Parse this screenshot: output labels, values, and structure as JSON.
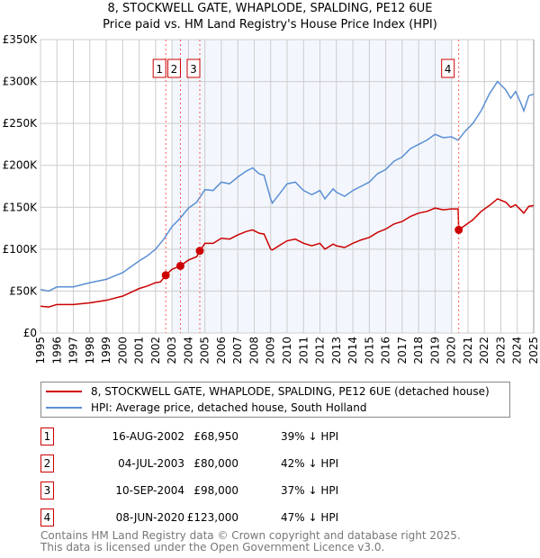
{
  "chart_data": {
    "type": "line",
    "title": "8, STOCKWELL GATE, WHAPLODE, SPALDING, PE12 6UE",
    "subtitle": "Price paid vs. HM Land Registry's House Price Index (HPI)",
    "xlim": [
      1995,
      2025
    ],
    "ylim": [
      0,
      350000
    ],
    "y_ticks": [
      {
        "v": 0,
        "label": "£0"
      },
      {
        "v": 50000,
        "label": "£50K"
      },
      {
        "v": 100000,
        "label": "£100K"
      },
      {
        "v": 150000,
        "label": "£150K"
      },
      {
        "v": 200000,
        "label": "£200K"
      },
      {
        "v": 250000,
        "label": "£250K"
      },
      {
        "v": 300000,
        "label": "£300K"
      },
      {
        "v": 350000,
        "label": "£350K"
      }
    ],
    "x_ticks": [
      "1995",
      "1996",
      "1997",
      "1998",
      "1999",
      "2000",
      "2001",
      "2002",
      "2003",
      "2004",
      "2005",
      "2006",
      "2007",
      "2008",
      "2009",
      "2010",
      "2011",
      "2012",
      "2013",
      "2014",
      "2015",
      "2016",
      "2017",
      "2018",
      "2019",
      "2020",
      "2021",
      "2022",
      "2023",
      "2024",
      "2025"
    ],
    "grid": true,
    "shaded_range": [
      2003.0,
      2020.07
    ],
    "series": [
      {
        "name": "8, STOCKWELL GATE, WHAPLODE, SPALDING, PE12 6UE (detached house)",
        "color": "#cc0000",
        "x": [
          1995,
          1995.5,
          1996,
          1997,
          1998,
          1999,
          2000,
          2001,
          2001.5,
          2002,
          2002.3,
          2002.62,
          2003,
          2003.51,
          2004,
          2004.5,
          2004.69,
          2005,
          2005.5,
          2006,
          2006.5,
          2007,
          2007.5,
          2007.9,
          2008.3,
          2008.6,
          2009,
          2009.1,
          2009.5,
          2010,
          2010.5,
          2011,
          2011.5,
          2012,
          2012.3,
          2012.8,
          2013,
          2013.5,
          2014,
          2014.5,
          2015,
          2015.5,
          2016,
          2016.5,
          2017,
          2017.5,
          2018,
          2018.5,
          2019,
          2019.5,
          2020,
          2020.4,
          2020.44,
          2020.8,
          2021.3,
          2021.8,
          2022.3,
          2022.8,
          2023.3,
          2023.6,
          2023.9,
          2024.2,
          2024.4,
          2024.7,
          2025
        ],
        "y": [
          32000,
          31000,
          34000,
          34000,
          36000,
          39000,
          44000,
          53000,
          56000,
          60000,
          61000,
          68950,
          76000,
          80000,
          87000,
          91000,
          98000,
          107000,
          107000,
          113000,
          112000,
          117000,
          121000,
          123000,
          119000,
          118000,
          100000,
          99000,
          104000,
          110000,
          112000,
          107000,
          104000,
          107000,
          100000,
          106000,
          104000,
          102000,
          107000,
          111000,
          114000,
          120000,
          124000,
          130000,
          133000,
          139000,
          143000,
          145000,
          149000,
          147000,
          148000,
          148000,
          123000,
          128000,
          135000,
          145000,
          152000,
          160000,
          156000,
          150000,
          153000,
          147000,
          143000,
          151000,
          152000
        ]
      },
      {
        "name": "HPI: Average price, detached house, South Holland",
        "color": "#5b8fd4",
        "x": [
          1995,
          1995.5,
          1996,
          1997,
          1998,
          1999,
          2000,
          2001,
          2001.5,
          2002,
          2002.5,
          2003,
          2003.5,
          2004,
          2004.5,
          2005,
          2005.5,
          2006,
          2006.5,
          2007,
          2007.5,
          2007.9,
          2008.3,
          2008.6,
          2009,
          2009.1,
          2009.5,
          2010,
          2010.5,
          2011,
          2011.5,
          2012,
          2012.3,
          2012.8,
          2013,
          2013.5,
          2014,
          2014.5,
          2015,
          2015.5,
          2016,
          2016.5,
          2017,
          2017.5,
          2018,
          2018.5,
          2019,
          2019.5,
          2020,
          2020.4,
          2020.8,
          2021.3,
          2021.8,
          2022.3,
          2022.8,
          2023.3,
          2023.6,
          2023.9,
          2024.2,
          2024.4,
          2024.7,
          2025
        ],
        "y": [
          52000,
          50000,
          55000,
          55000,
          60000,
          64000,
          72000,
          86000,
          92000,
          100000,
          112000,
          127000,
          137000,
          149000,
          156000,
          171000,
          170000,
          180000,
          178000,
          186000,
          193000,
          197000,
          190000,
          188000,
          160000,
          155000,
          165000,
          178000,
          180000,
          170000,
          165000,
          170000,
          160000,
          172000,
          168000,
          163000,
          170000,
          175000,
          180000,
          190000,
          195000,
          205000,
          210000,
          220000,
          225000,
          230000,
          237000,
          233000,
          234000,
          230000,
          240000,
          250000,
          265000,
          285000,
          300000,
          290000,
          280000,
          288000,
          275000,
          265000,
          283000,
          285000
        ]
      }
    ],
    "sales": [
      {
        "n": "1",
        "x": 2002.62,
        "y": 68950
      },
      {
        "n": "2",
        "x": 2003.51,
        "y": 80000
      },
      {
        "n": "3",
        "x": 2004.69,
        "y": 98000
      },
      {
        "n": "4",
        "x": 2020.44,
        "y": 123000
      }
    ]
  },
  "legend": {
    "property": "8, STOCKWELL GATE, WHAPLODE, SPALDING, PE12 6UE (detached house)",
    "hpi": "HPI: Average price, detached house, South Holland"
  },
  "transactions": [
    {
      "n": "1",
      "date": "16-AUG-2002",
      "price": "£68,950",
      "hpi": "39% ↓ HPI"
    },
    {
      "n": "2",
      "date": "04-JUL-2003",
      "price": "£80,000",
      "hpi": "42% ↓ HPI"
    },
    {
      "n": "3",
      "date": "10-SEP-2004",
      "price": "£98,000",
      "hpi": "37% ↓ HPI"
    },
    {
      "n": "4",
      "date": "08-JUN-2020",
      "price": "£123,000",
      "hpi": "47% ↓ HPI"
    }
  ],
  "footer": {
    "line1": "Contains HM Land Registry data © Crown copyright and database right 2025.",
    "line2": "This data is licensed under the Open Government Licence v3.0."
  }
}
